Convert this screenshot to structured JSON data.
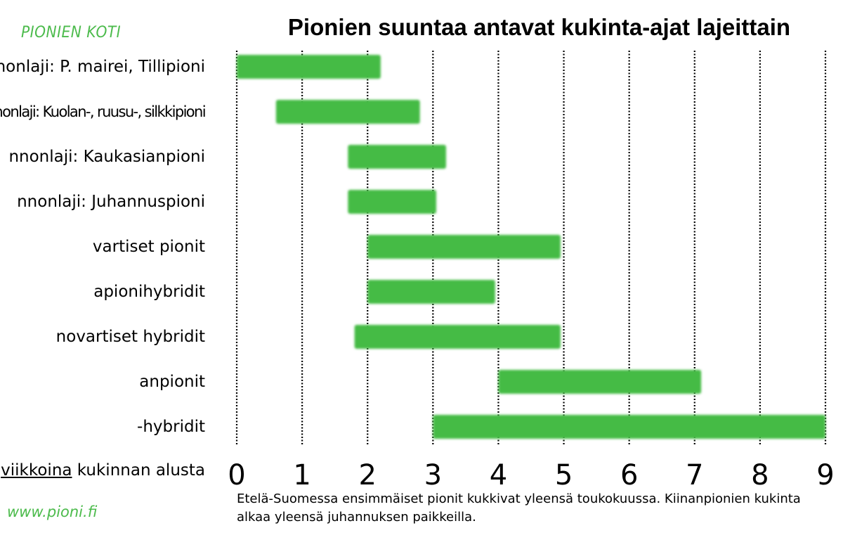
{
  "brand": {
    "name": "PIONIEN KOTI",
    "color": "#4cbb4c"
  },
  "website": "www.pioni.fi",
  "note": {
    "line1": "Etelä-Suomessa ensimmäiset pionit kukkivat yleensä toukokuussa. Kiinanpionien kukinta",
    "line2": "alkaa yleensä juhannuksen paikkeilla."
  },
  "axis_caption": {
    "underlined": "viikkoina",
    "rest": " kukinnan alusta"
  },
  "chart_data": {
    "type": "bar",
    "subtype": "gantt",
    "title": "Pionien suuntaa antavat kukinta-ajat lajeittain",
    "xlim": [
      0,
      9
    ],
    "x_ticks": [
      0,
      1,
      2,
      3,
      4,
      5,
      6,
      7,
      8,
      9
    ],
    "grid": "vertical dotted lines at each week",
    "bar_color": "#44bb44",
    "categories": [
      "nnonlaji: P. mairei, Tillipioni",
      "nonlaji: Kuolan-, ruusu-, silkkipioni",
      "nnonlaji: Kaukasianpioni",
      "nnonlaji: Juhannuspioni",
      "vartiset pionit",
      "apionihybridit",
      "novartiset hybridit",
      "anpionit",
      "-hybridit"
    ],
    "ranges": [
      [
        0.0,
        2.2
      ],
      [
        0.6,
        2.8
      ],
      [
        1.7,
        3.2
      ],
      [
        1.7,
        3.05
      ],
      [
        2.0,
        4.95
      ],
      [
        2.0,
        3.95
      ],
      [
        1.8,
        4.95
      ],
      [
        4.0,
        7.1
      ],
      [
        3.0,
        9.0
      ]
    ]
  }
}
